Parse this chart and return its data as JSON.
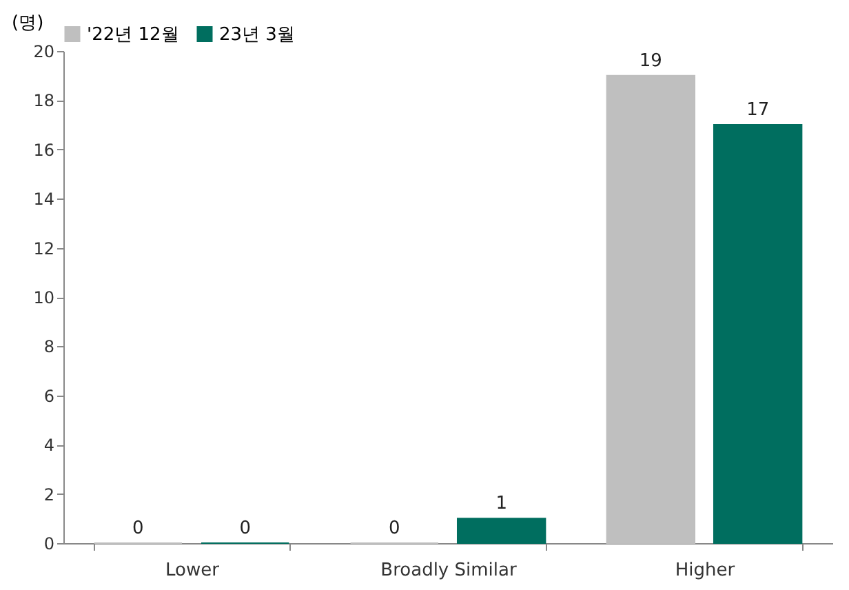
{
  "chart_data": {
    "type": "bar",
    "ylabel": "(명)",
    "categories": [
      "Lower",
      "Broadly Similar",
      "Higher"
    ],
    "series": [
      {
        "name": "'22년 12월",
        "color": "#bfbfbf",
        "values": [
          0,
          0,
          19
        ]
      },
      {
        "name": "23년 3월",
        "color": "#006e5f",
        "values": [
          0,
          1,
          17
        ]
      }
    ],
    "ylim": [
      0,
      20
    ],
    "yticks": [
      0,
      2,
      4,
      6,
      8,
      10,
      12,
      14,
      16,
      18,
      20
    ],
    "data_labels": true,
    "legend": "top",
    "grid": false
  }
}
